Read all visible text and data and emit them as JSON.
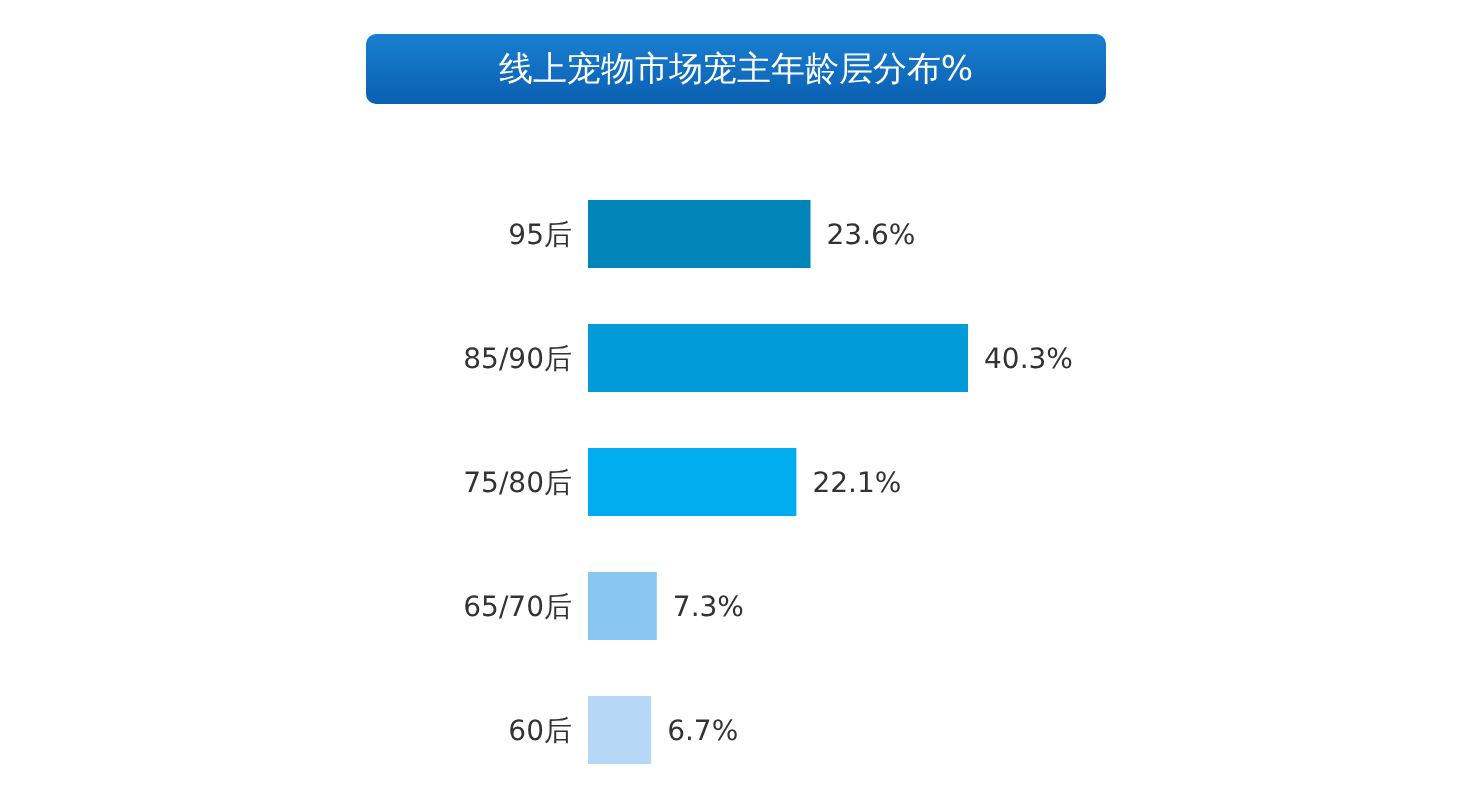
{
  "chart_data": {
    "type": "bar",
    "title": "线上宠物市场宠主年龄层分布%",
    "orientation": "horizontal",
    "categories": [
      "95后",
      "85/90后",
      "75/80后",
      "65/70后",
      "60后"
    ],
    "values": [
      23.6,
      40.3,
      22.1,
      7.3,
      6.7
    ],
    "colors": [
      "#0085b8",
      "#009bd8",
      "#00aeef",
      "#89c7f2",
      "#b5d8f6"
    ],
    "value_labels": [
      "23.6%",
      "40.3%",
      "22.1%",
      "7.3%",
      "6.7%"
    ]
  }
}
